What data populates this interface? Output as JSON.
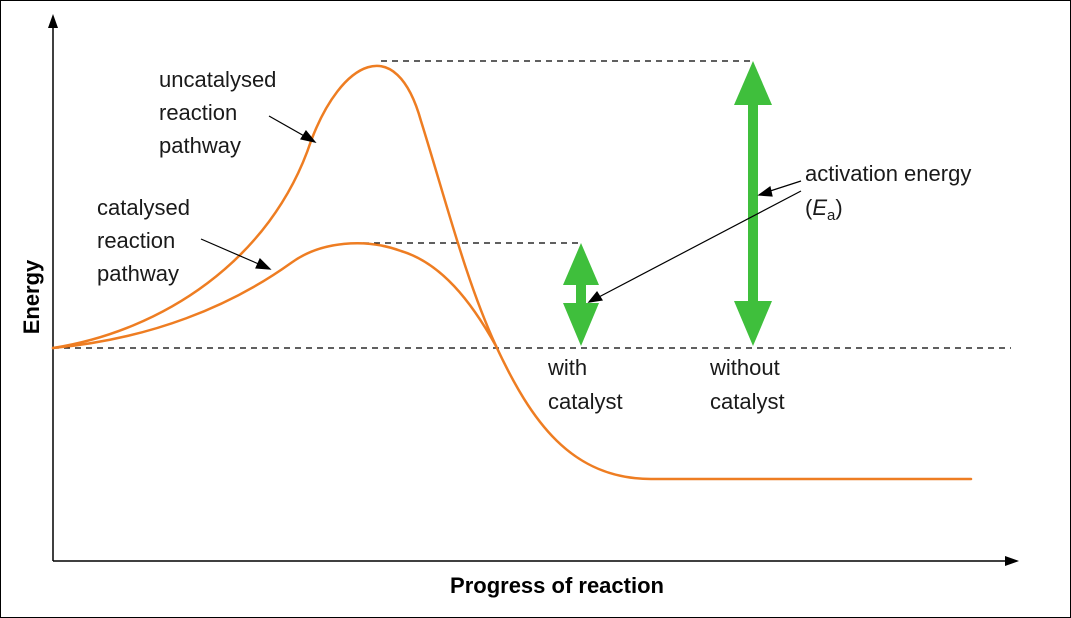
{
  "axes": {
    "x_label": "Progress of reaction",
    "y_label": "Energy"
  },
  "curves": {
    "uncatalysed": [
      "uncatalysed",
      "reaction",
      "pathway"
    ],
    "catalysed": [
      "catalysed",
      "reaction",
      "pathway"
    ]
  },
  "activation_energy": {
    "label_line1": "activation energy",
    "label_open": "(",
    "label_symbol": "E",
    "label_subscript": "a",
    "label_close": ")"
  },
  "arrows": {
    "with_catalyst": [
      "with",
      "catalyst"
    ],
    "without_catalyst": [
      "without",
      "catalyst"
    ]
  },
  "colors": {
    "curve": "#ee7d22",
    "arrow": "#3fbf3c",
    "axis": "#000000",
    "dashed": "#000000"
  }
}
